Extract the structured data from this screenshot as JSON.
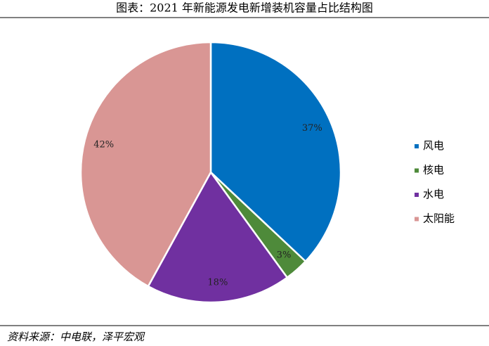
{
  "chart_data": {
    "type": "pie",
    "title": "图表：2021 年新能源发电新增装机容量占比结构图",
    "categories": [
      "风电",
      "核电",
      "水电",
      "太阳能"
    ],
    "values": [
      37,
      3,
      18,
      42
    ],
    "value_labels": [
      "37%",
      "3%",
      "18%",
      "42%"
    ],
    "colors": [
      "#0070c0",
      "#4e8a3a",
      "#7030a0",
      "#d99694"
    ],
    "legend": "right",
    "source": "资料来源：中电联，泽平宏观"
  }
}
